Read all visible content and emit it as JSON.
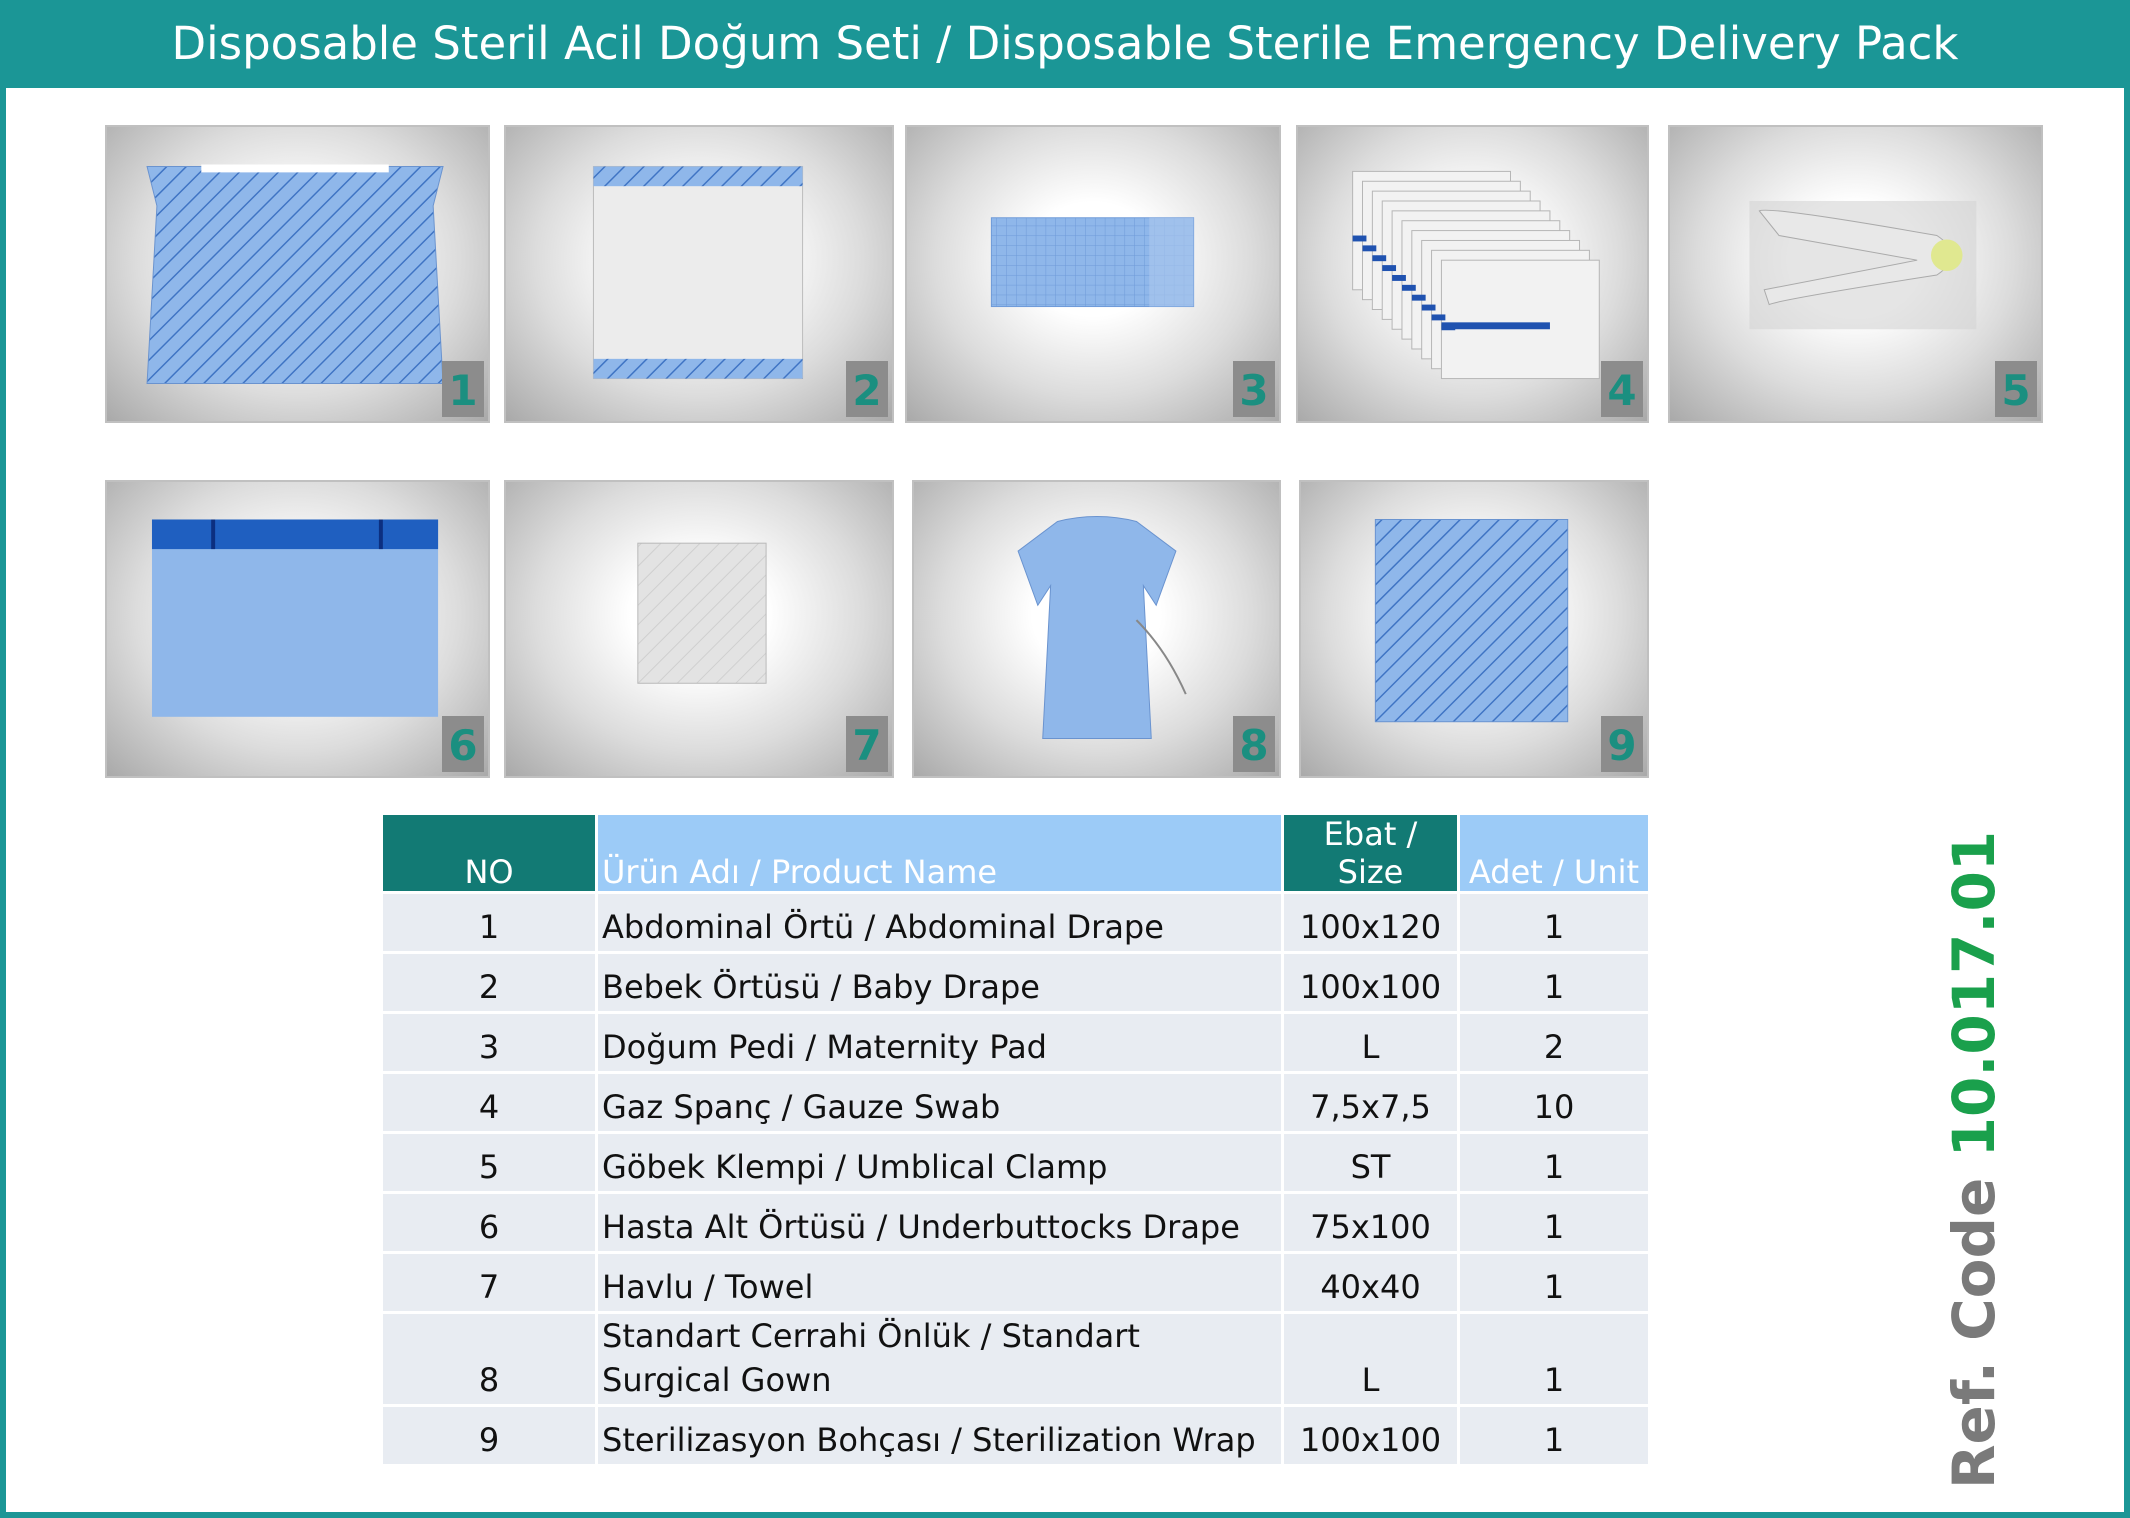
{
  "header": {
    "title": "Disposable Steril Acil Doğum Seti / Disposable Sterile Emergency Delivery Pack"
  },
  "images": [
    {
      "label": "1"
    },
    {
      "label": "2"
    },
    {
      "label": "3"
    },
    {
      "label": "4"
    },
    {
      "label": "5"
    },
    {
      "label": "6"
    },
    {
      "label": "7"
    },
    {
      "label": "8"
    },
    {
      "label": "9"
    }
  ],
  "table": {
    "columns": [
      "NO",
      "Ürün Adı / Product Name",
      "Ebat / Size",
      "Adet / Unit"
    ],
    "rows": [
      [
        "1",
        "Abdominal Örtü / Abdominal Drape",
        "100x120",
        "1"
      ],
      [
        "2",
        "Bebek Örtüsü / Baby Drape",
        "100x100",
        "1"
      ],
      [
        "3",
        "Doğum Pedi / Maternity Pad",
        "L",
        "2"
      ],
      [
        "4",
        "Gaz Spanç / Gauze Swab",
        "7,5x7,5",
        "10"
      ],
      [
        "5",
        "Göbek Klempi / Umblical Clamp",
        "ST",
        "1"
      ],
      [
        "6",
        "Hasta Alt Örtüsü / Underbuttocks Drape",
        "75x100",
        "1"
      ],
      [
        "7",
        "Havlu / Towel",
        "40x40",
        "1"
      ],
      [
        "8",
        "Standart Cerrahi Önlük / Standart Surgical Gown",
        "L",
        "1"
      ],
      [
        "9",
        "Sterilizasyon Bohçası / Sterilization Wrap",
        "100x100",
        "1"
      ]
    ]
  },
  "ref_code": {
    "label": "Ref. Code",
    "code": "10.017.01"
  }
}
